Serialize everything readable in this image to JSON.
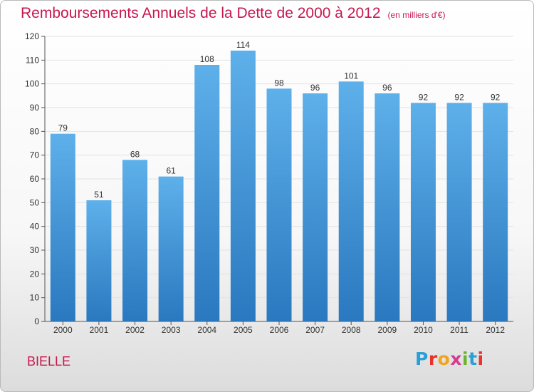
{
  "header": {
    "title": "Remboursements Annuels de la Dette de 2000 à 2012",
    "unit": "(en milliers d'€)"
  },
  "footer": {
    "commune": "BIELLE",
    "logo_letters": [
      "P",
      "r",
      "o",
      "x",
      "i",
      "t",
      "i"
    ],
    "logo_colors": [
      "#2a9fd6",
      "#e8332a",
      "#f2a31b",
      "#d43b8f",
      "#6bb32e",
      "#2a9fd6",
      "#e8332a"
    ]
  },
  "colors": {
    "bar_top": "#5eb0ea",
    "bar_bottom": "#2a78bf",
    "title": "#c8174e",
    "grid": "#e3e3e3"
  },
  "chart_data": {
    "type": "bar",
    "categories": [
      "2000",
      "2001",
      "2002",
      "2003",
      "2004",
      "2005",
      "2006",
      "2007",
      "2008",
      "2009",
      "2010",
      "2011",
      "2012"
    ],
    "values": [
      79,
      51,
      68,
      61,
      108,
      114,
      98,
      96,
      101,
      96,
      92,
      92,
      92
    ],
    "ylim": [
      0,
      120
    ],
    "yticks": [
      0,
      10,
      20,
      30,
      40,
      50,
      60,
      70,
      80,
      90,
      100,
      110,
      120
    ],
    "grid": true,
    "legend": "none"
  }
}
